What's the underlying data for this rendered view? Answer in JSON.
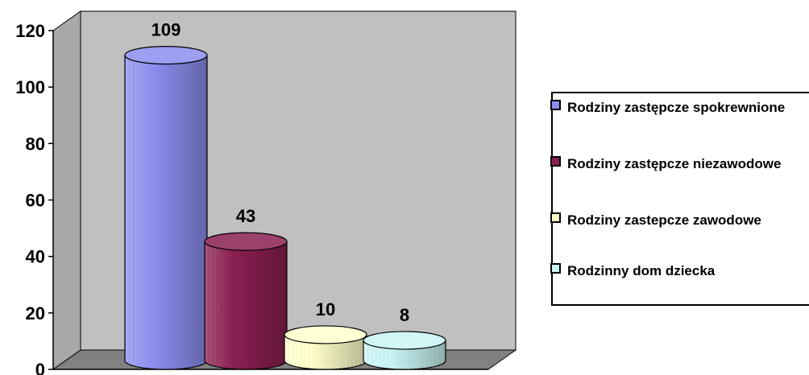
{
  "chart_data": {
    "type": "bar",
    "categories": [
      "Rodziny zastępcze spokrewnione",
      "Rodziny zastępcze niezawodowe",
      "Rodziny zastepcze zawodowe",
      "Rodzinny dom dziecka"
    ],
    "values": [
      109,
      43,
      10,
      8
    ],
    "data_labels": [
      "109",
      "43",
      "10",
      "8"
    ],
    "ylim": [
      0,
      120
    ],
    "yticks": [
      0,
      20,
      40,
      60,
      80,
      100,
      120
    ],
    "ytick_labels": [
      "0",
      "20",
      "40",
      "60",
      "80",
      "100",
      "120"
    ],
    "colors": [
      "#8C8EF0",
      "#8B1F52",
      "#FFFFCC",
      "#C8F4F4"
    ],
    "wall_color": "#C0C0C0",
    "floor_color": "#808080",
    "legend_placement": "right",
    "style": "3d-cylinder",
    "grid": false
  }
}
